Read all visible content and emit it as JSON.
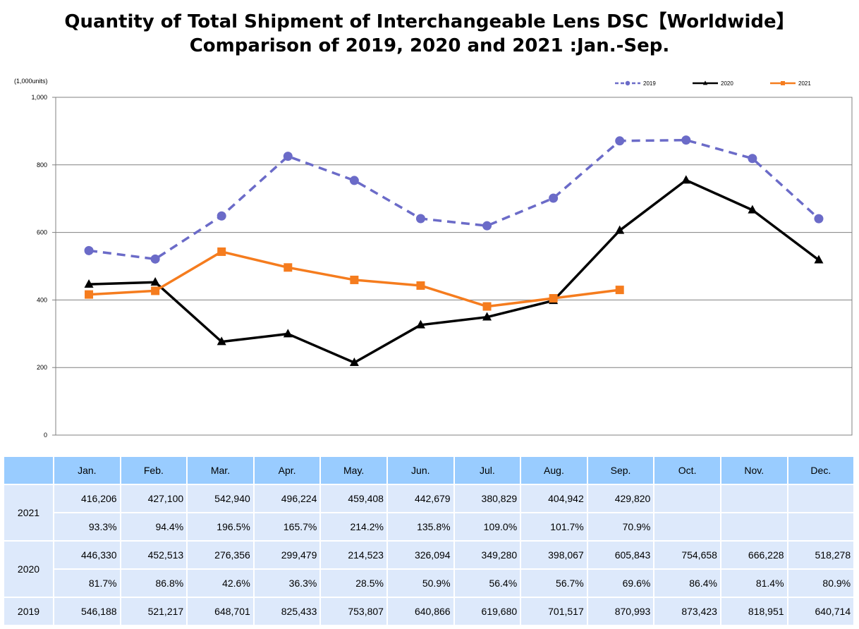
{
  "title_line1": "Quantity of Total Shipment of Interchangeable Lens DSC【Worldwide】",
  "title_line2": "Comparison of 2019, 2020 and 2021 :Jan.-Sep.",
  "chart_data": {
    "type": "line",
    "title": "Quantity of Total Shipment of Interchangeable Lens DSC【Worldwide】 Comparison of 2019, 2020 and 2021 :Jan.-Sep.",
    "ylabel": "(1,000units)",
    "xlabel": "",
    "ylim": [
      0,
      1000
    ],
    "yticks": [
      0,
      200,
      400,
      600,
      800,
      1000
    ],
    "ytick_labels": [
      "0",
      "200",
      "400",
      "600",
      "800",
      "1,000"
    ],
    "grid": true,
    "legend_position": "top-right",
    "categories": [
      "Jan.",
      "Feb.",
      "Mar.",
      "Apr.",
      "May.",
      "Jun.",
      "Jul.",
      "Aug.",
      "Sep.",
      "Oct.",
      "Nov.",
      "Dec."
    ],
    "series": [
      {
        "name": "2019",
        "color": "#6b6bc8",
        "style": "dashed",
        "marker": "circle",
        "values": [
          546.188,
          521.217,
          648.701,
          825.433,
          753.807,
          640.866,
          619.68,
          701.517,
          870.993,
          873.423,
          818.951,
          640.714
        ]
      },
      {
        "name": "2020",
        "color": "#000000",
        "style": "solid",
        "marker": "triangle",
        "values": [
          446.33,
          452.513,
          276.356,
          299.479,
          214.523,
          326.094,
          349.28,
          398.067,
          605.843,
          754.658,
          666.228,
          518.278
        ]
      },
      {
        "name": "2021",
        "color": "#f57c1e",
        "style": "solid",
        "marker": "square",
        "values": [
          416.206,
          427.1,
          542.94,
          496.224,
          459.408,
          442.679,
          380.829,
          404.942,
          429.82,
          null,
          null,
          null
        ]
      }
    ]
  },
  "table": {
    "months": [
      "Jan.",
      "Feb.",
      "Mar.",
      "Apr.",
      "May.",
      "Jun.",
      "Jul.",
      "Aug.",
      "Sep.",
      "Oct.",
      "Nov.",
      "Dec."
    ],
    "rows": [
      {
        "year": "2021",
        "units": [
          "416,206",
          "427,100",
          "542,940",
          "496,224",
          "459,408",
          "442,679",
          "380,829",
          "404,942",
          "429,820",
          "",
          "",
          ""
        ],
        "ratio": [
          "93.3%",
          "94.4%",
          "196.5%",
          "165.7%",
          "214.2%",
          "135.8%",
          "109.0%",
          "101.7%",
          "70.9%",
          "",
          "",
          ""
        ]
      },
      {
        "year": "2020",
        "units": [
          "446,330",
          "452,513",
          "276,356",
          "299,479",
          "214,523",
          "326,094",
          "349,280",
          "398,067",
          "605,843",
          "754,658",
          "666,228",
          "518,278"
        ],
        "ratio": [
          "81.7%",
          "86.8%",
          "42.6%",
          "36.3%",
          "28.5%",
          "50.9%",
          "56.4%",
          "56.7%",
          "69.6%",
          "86.4%",
          "81.4%",
          "80.9%"
        ]
      },
      {
        "year": "2019",
        "units": [
          "546,188",
          "521,217",
          "648,701",
          "825,433",
          "753,807",
          "640,866",
          "619,680",
          "701,517",
          "870,993",
          "873,423",
          "818,951",
          "640,714"
        ]
      }
    ]
  }
}
